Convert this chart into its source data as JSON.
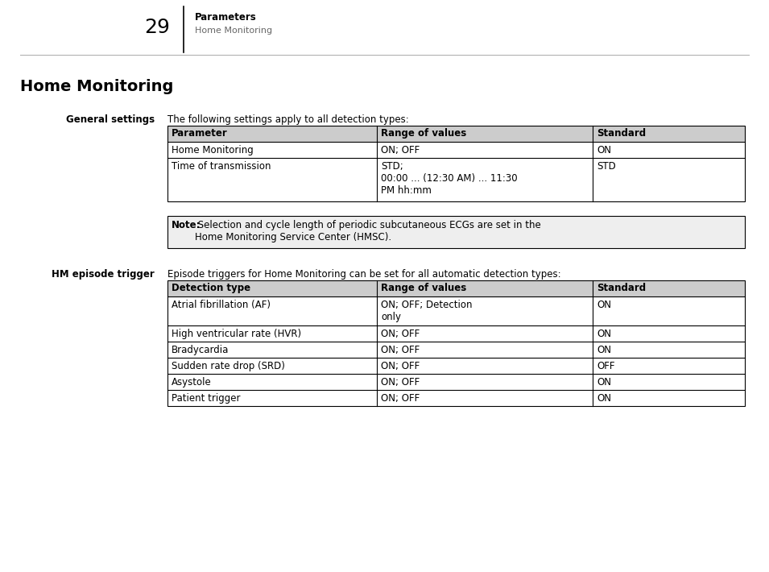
{
  "page_number": "29",
  "header_bold": "Parameters",
  "header_sub": "Home Monitoring",
  "section_title": "Home Monitoring",
  "section1_label": "General settings",
  "section1_intro": "The following settings apply to all detection types:",
  "table1_headers": [
    "Parameter",
    "Range of values",
    "Standard"
  ],
  "table1_rows": [
    [
      "Home Monitoring",
      "ON; OFF",
      "ON"
    ],
    [
      "Time of transmission",
      "STD;\n00:00 ... (12:30 AM) ... 11:30\nPM hh:mm",
      "STD"
    ]
  ],
  "note_bold": "Note:",
  "note_text": " Selection and cycle length of periodic subcutaneous ECGs are set in the\nHome Monitoring Service Center (HMSC).",
  "section2_label": "HM episode trigger",
  "section2_intro": "Episode triggers for Home Monitoring can be set for all automatic detection types:",
  "table2_headers": [
    "Detection type",
    "Range of values",
    "Standard"
  ],
  "table2_rows": [
    [
      "Atrial fibrillation (AF)",
      "ON; OFF; Detection\nonly",
      "ON"
    ],
    [
      "High ventricular rate (HVR)",
      "ON; OFF",
      "ON"
    ],
    [
      "Bradycardia",
      "ON; OFF",
      "ON"
    ],
    [
      "Sudden rate drop (SRD)",
      "ON; OFF",
      "OFF"
    ],
    [
      "Asystole",
      "ON; OFF",
      "ON"
    ],
    [
      "Patient trigger",
      "ON; OFF",
      "ON"
    ]
  ],
  "bg_color": "#ffffff",
  "text_color": "#000000",
  "table_header_bg": "#cccccc",
  "note_bg": "#eeeeee",
  "line_color": "#000000",
  "header_line_color": "#888888",
  "header_sub_color": "#666666"
}
